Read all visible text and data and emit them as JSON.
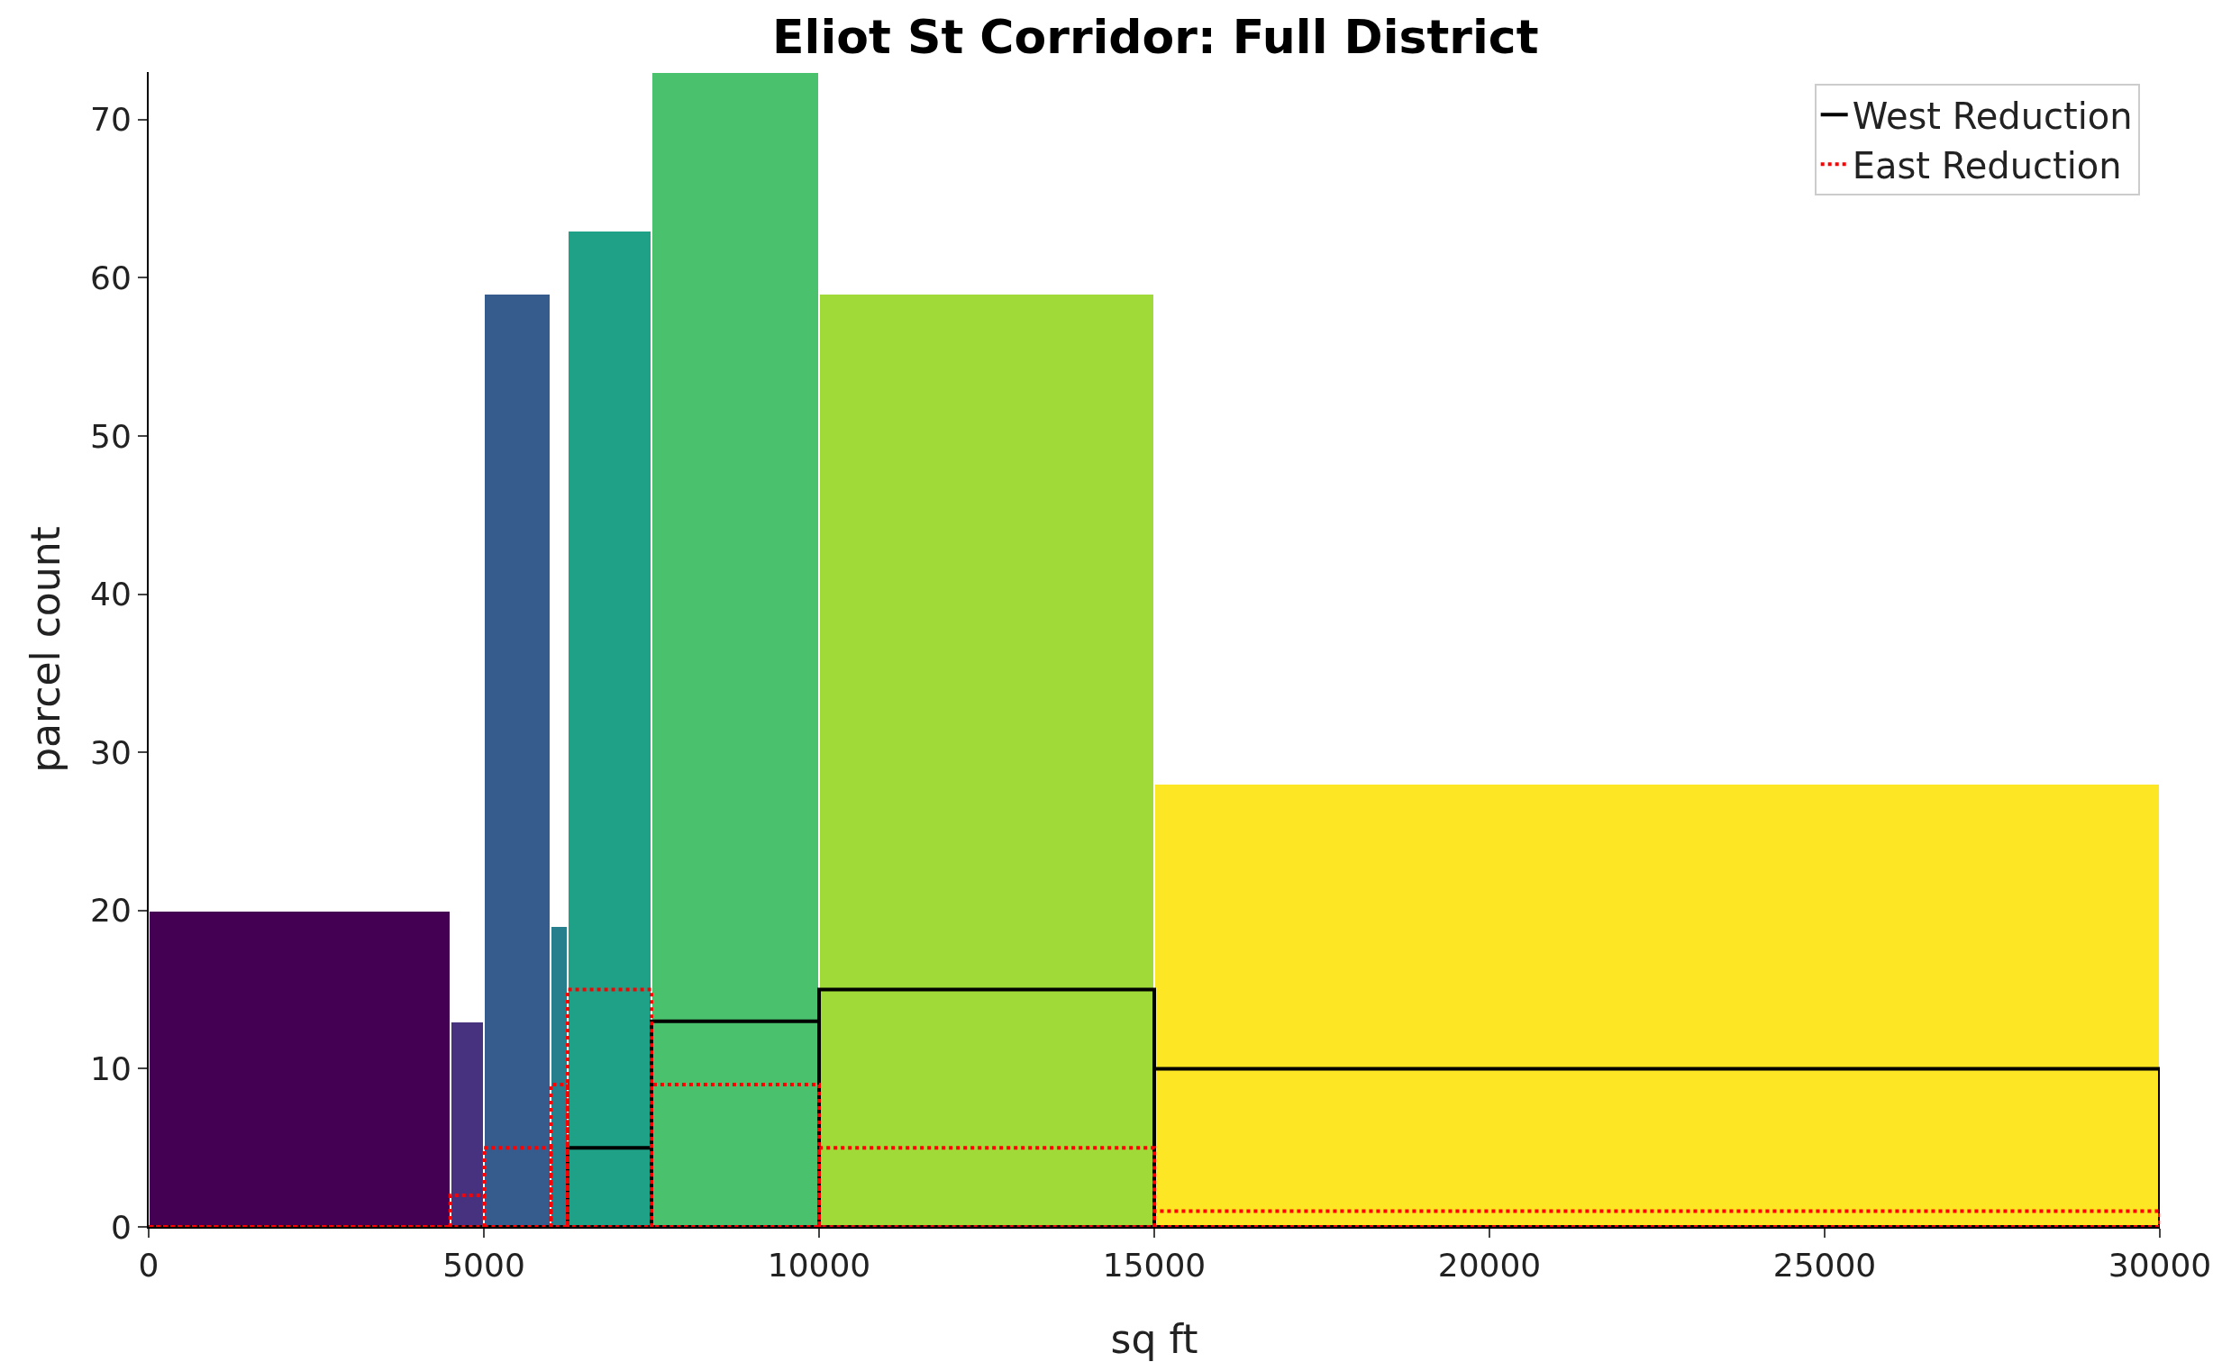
{
  "chart_data": {
    "type": "histogram",
    "title": "Eliot St Corridor: Full District",
    "xlabel": "sq ft",
    "ylabel": "parcel count",
    "bins": [
      0,
      4500,
      5000,
      6000,
      6250,
      7500,
      10000,
      15000,
      30000
    ],
    "values": [
      20,
      13,
      59,
      19,
      63,
      73,
      59,
      28
    ],
    "colors": [
      "#440154",
      "#46327e",
      "#365c8d",
      "#277f8e",
      "#1fa187",
      "#4ac16d",
      "#a0da39",
      "#fde725"
    ],
    "series": [
      {
        "name": "West Reduction",
        "color": "#000000",
        "line_style": "solid",
        "values": [
          0,
          0,
          0,
          0,
          5,
          13,
          15,
          10
        ]
      },
      {
        "name": "East Reduction",
        "color": "#ff0000",
        "line_style": "dotted",
        "values": [
          0,
          2,
          5,
          9,
          15,
          9,
          5,
          1
        ]
      }
    ],
    "xlim": [
      0,
      30000
    ],
    "xticks": [
      0,
      5000,
      10000,
      15000,
      20000,
      25000,
      30000
    ],
    "ylim": [
      0,
      73
    ],
    "yticks": [
      0,
      10,
      20,
      30,
      40,
      50,
      60,
      70
    ],
    "grid": false,
    "legend": "top right"
  }
}
